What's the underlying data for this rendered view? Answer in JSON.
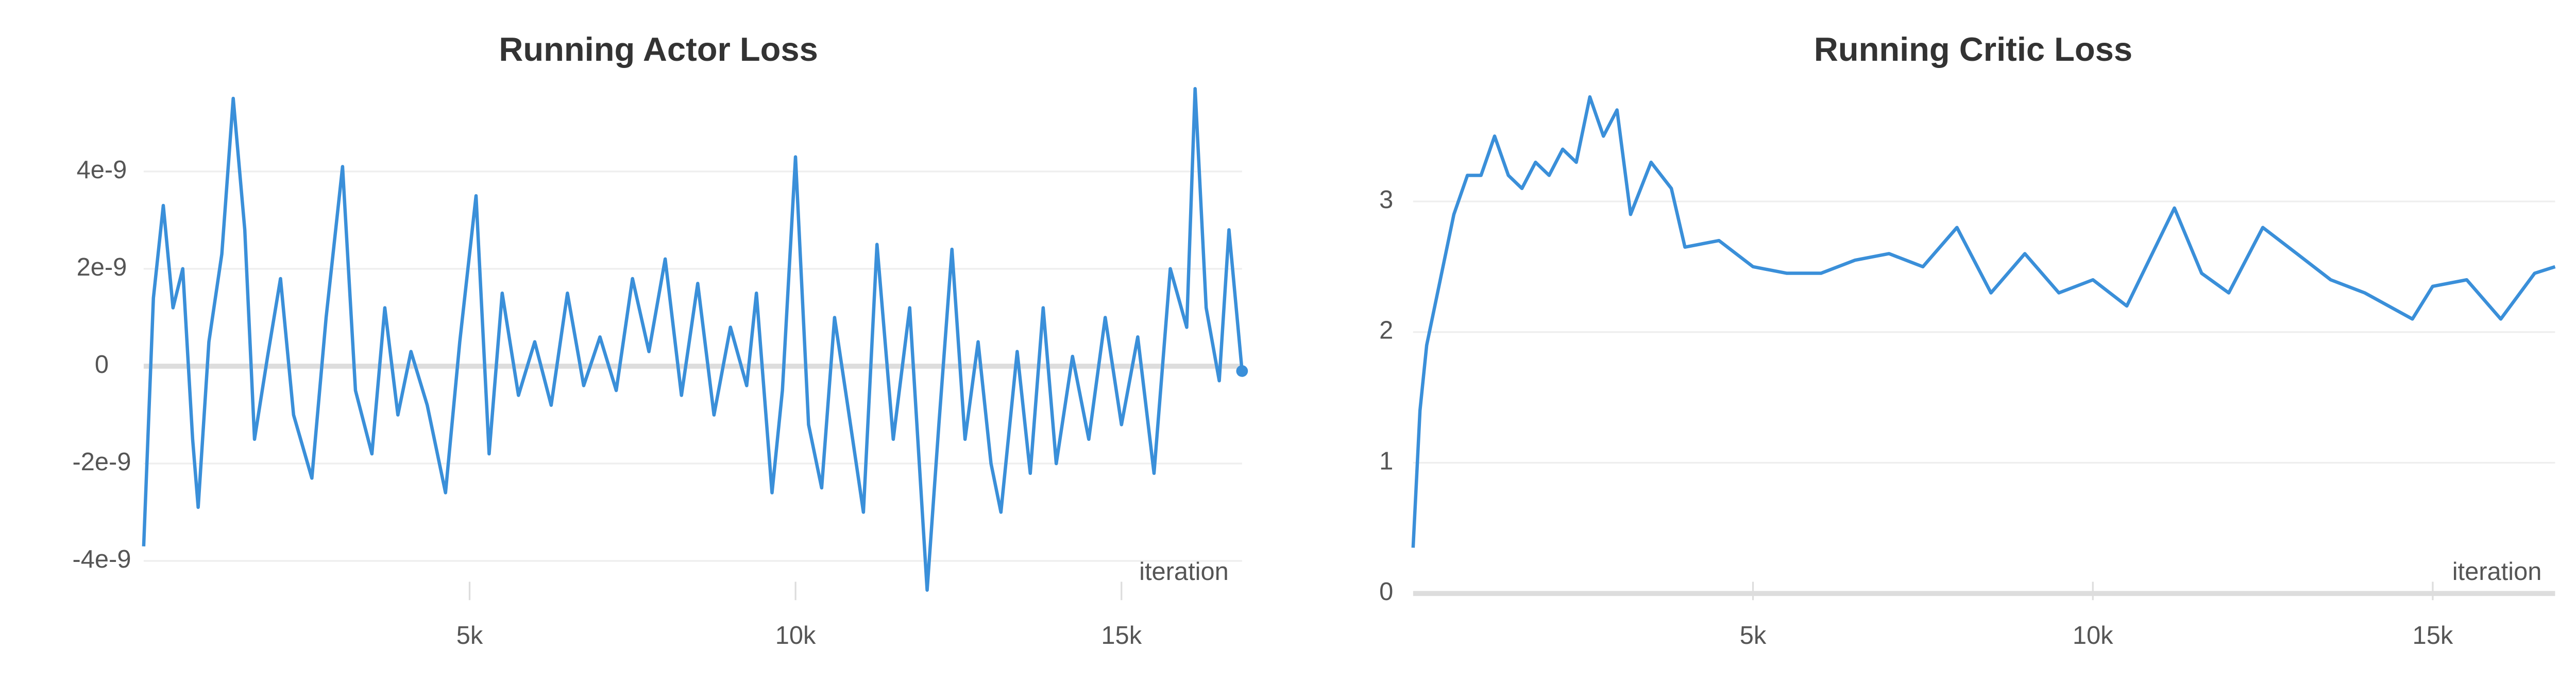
{
  "chart_data": [
    {
      "type": "line",
      "title": "Running Actor Loss",
      "x_label": "iteration",
      "color": "#3a8fd9",
      "grid": true,
      "x": [
        0,
        150,
        300,
        450,
        600,
        750,
        835,
        1000,
        1200,
        1375,
        1550,
        1700,
        1900,
        2100,
        2300,
        2580,
        2800,
        3050,
        3250,
        3500,
        3700,
        3900,
        4100,
        4350,
        4630,
        4850,
        5100,
        5300,
        5500,
        5750,
        6000,
        6250,
        6500,
        6750,
        7000,
        7250,
        7500,
        7750,
        8000,
        8250,
        8500,
        8750,
        9000,
        9250,
        9400,
        9640,
        9800,
        10000,
        10200,
        10400,
        10600,
        10800,
        11040,
        11250,
        11500,
        11750,
        12020,
        12200,
        12400,
        12600,
        12800,
        13000,
        13150,
        13400,
        13600,
        13800,
        14000,
        14250,
        14500,
        14750,
        15000,
        15250,
        15500,
        15750,
        16000,
        16130,
        16300,
        16500,
        16650,
        16850
      ],
      "values": [
        -3.7e-09,
        1.4e-09,
        3.3e-09,
        1.2e-09,
        2e-09,
        -1.5e-09,
        -2.9e-09,
        5e-10,
        2.3e-09,
        5.5e-09,
        2.8e-09,
        -1.5e-09,
        2e-10,
        1.8e-09,
        -1e-09,
        -2.3e-09,
        1e-09,
        4.1e-09,
        -5e-10,
        -1.8e-09,
        1.2e-09,
        -1e-09,
        3e-10,
        -8e-10,
        -2.6e-09,
        5e-10,
        3.5e-09,
        -1.8e-09,
        1.5e-09,
        -6e-10,
        5e-10,
        -8e-10,
        1.5e-09,
        -4e-10,
        6e-10,
        -5e-10,
        1.8e-09,
        3e-10,
        2.2e-09,
        -6e-10,
        1.7e-09,
        -1e-09,
        8e-10,
        -4e-10,
        1.5e-09,
        -2.6e-09,
        -5e-10,
        4.3e-09,
        -1.2e-09,
        -2.5e-09,
        1e-09,
        -8e-10,
        -3e-09,
        2.5e-09,
        -1.5e-09,
        1.2e-09,
        -4.6e-09,
        -1.2e-09,
        2.4e-09,
        -1.5e-09,
        5e-10,
        -2e-09,
        -3e-09,
        3e-10,
        -2.2e-09,
        1.2e-09,
        -2e-09,
        2e-10,
        -1.5e-09,
        1e-09,
        -1.2e-09,
        6e-10,
        -2.2e-09,
        2e-09,
        8e-10,
        5.7e-09,
        1.2e-09,
        -3e-10,
        2.8e-09,
        -1e-10
      ],
      "xlim": [
        0,
        16850
      ],
      "xticks": [
        {
          "value": 5000,
          "label": "5k"
        },
        {
          "value": 10000,
          "label": "10k"
        },
        {
          "value": 15000,
          "label": "15k"
        }
      ],
      "ylim": [
        -4.6e-09,
        5.8e-09
      ],
      "yticks": [
        -4e-09,
        -2e-09,
        0,
        2e-09,
        4e-09
      ]
    },
    {
      "type": "line",
      "title": "Running Critic Loss",
      "x_label": "iteration",
      "color": "#3a8fd9",
      "grid": true,
      "x": [
        0,
        100,
        200,
        400,
        600,
        800,
        1000,
        1200,
        1400,
        1600,
        1800,
        2000,
        2200,
        2400,
        2600,
        2800,
        3000,
        3200,
        3500,
        3800,
        4000,
        4500,
        5000,
        5500,
        6000,
        6500,
        7000,
        7500,
        8000,
        8500,
        9000,
        9500,
        10000,
        10500,
        11200,
        11600,
        12000,
        12500,
        13000,
        13500,
        14000,
        14700,
        15000,
        15500,
        16000,
        16500,
        16800
      ],
      "values": [
        0.35,
        1.4,
        1.9,
        2.4,
        2.9,
        3.2,
        3.2,
        3.5,
        3.2,
        3.1,
        3.3,
        3.2,
        3.4,
        3.3,
        3.8,
        3.5,
        3.7,
        2.9,
        3.3,
        3.1,
        2.65,
        2.7,
        2.5,
        2.45,
        2.45,
        2.55,
        2.6,
        2.5,
        2.8,
        2.3,
        2.6,
        2.3,
        2.4,
        2.2,
        2.95,
        2.45,
        2.3,
        2.8,
        2.6,
        2.4,
        2.3,
        2.1,
        2.35,
        2.4,
        2.1,
        2.45,
        2.5
      ],
      "xlim": [
        0,
        16800
      ],
      "xticks": [
        {
          "value": 5000,
          "label": "5k"
        },
        {
          "value": 10000,
          "label": "10k"
        },
        {
          "value": 15000,
          "label": "15k"
        }
      ],
      "ylim": [
        0,
        3.9
      ],
      "yticks": [
        0,
        1,
        2,
        3
      ]
    }
  ]
}
